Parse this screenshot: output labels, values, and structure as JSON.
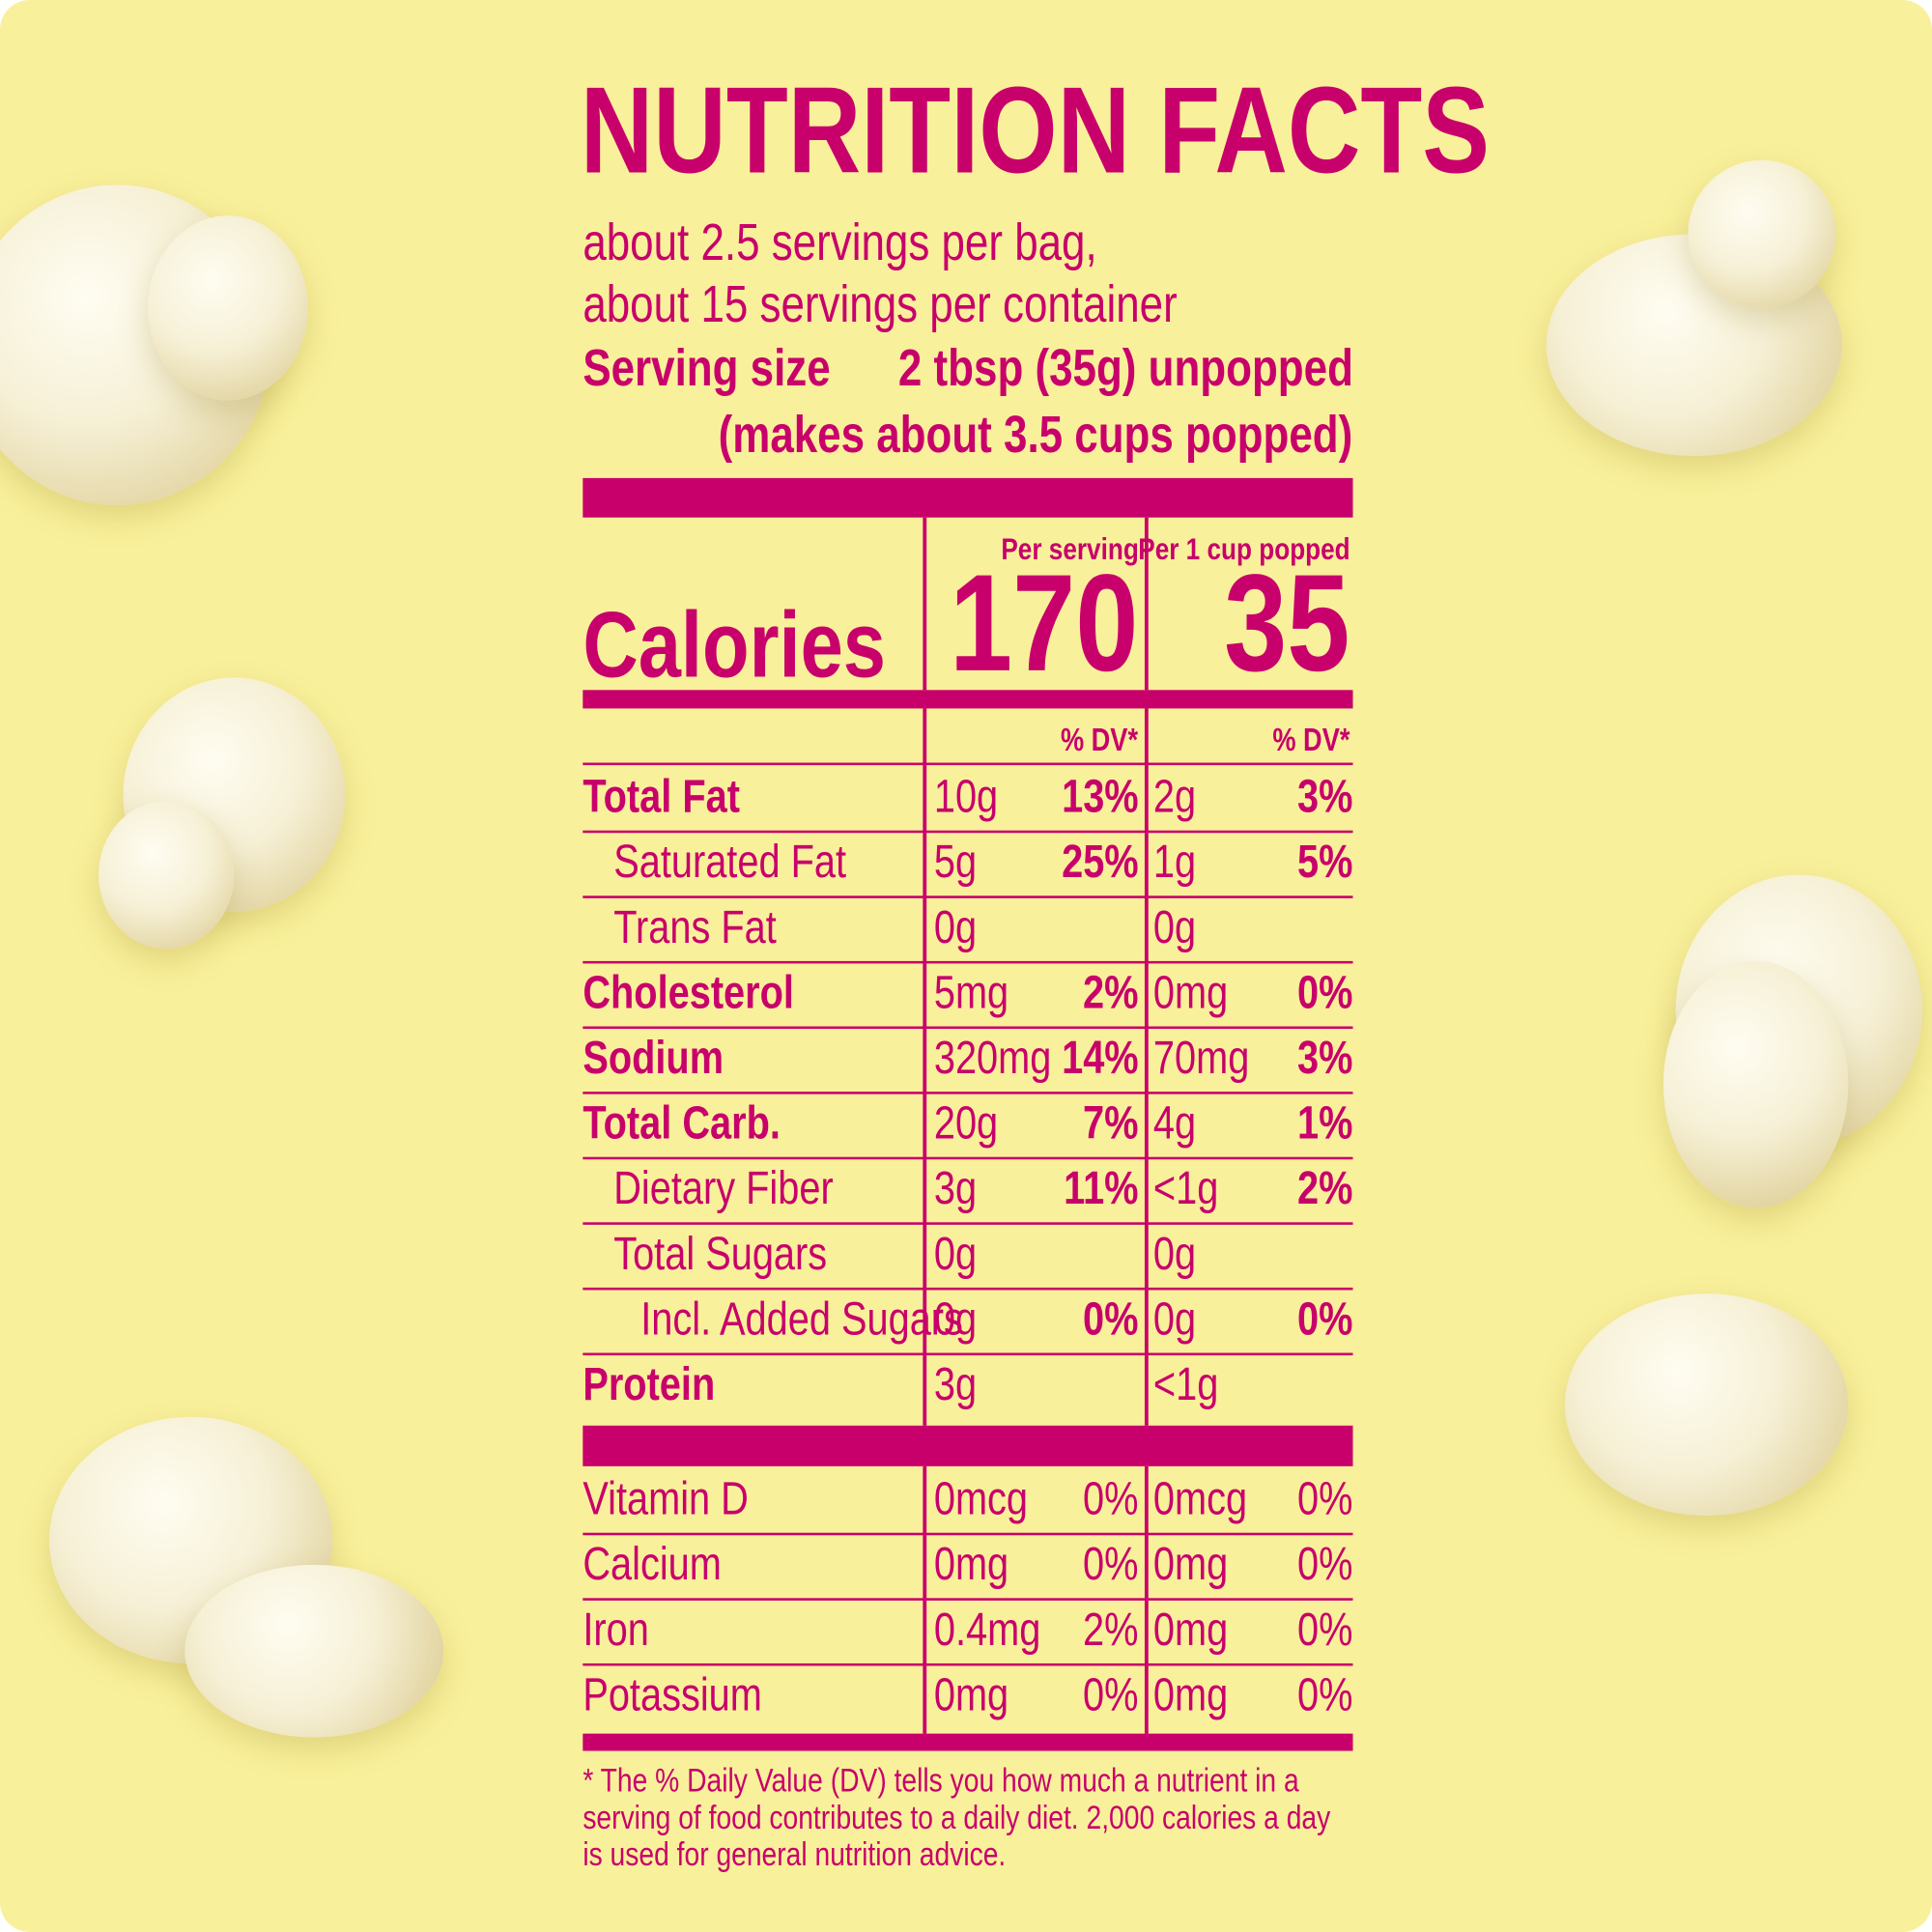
{
  "title": "NUTRITION FACTS",
  "servings": [
    "about 2.5 servings per bag,",
    "about 15 servings per container"
  ],
  "serving_size": {
    "label": "Serving size",
    "value": "2 tbsp (35g) unpopped",
    "note": "(makes about 3.5 cups popped)"
  },
  "columns": [
    "Per serving",
    "Per 1 cup popped"
  ],
  "calories": {
    "label": "Calories",
    "values": [
      "170",
      "35"
    ]
  },
  "dv_header": [
    "% DV*",
    "% DV*"
  ],
  "nutrients": [
    {
      "name": "Total Fat",
      "per_serving": [
        "10g",
        "13%"
      ],
      "per_cup": [
        "2g",
        "3%"
      ]
    },
    {
      "name": "Saturated Fat",
      "per_serving": [
        "5g",
        "25%"
      ],
      "per_cup": [
        "1g",
        "5%"
      ]
    },
    {
      "name": "Trans Fat",
      "per_serving": [
        "0g"
      ],
      "per_cup": [
        "0g"
      ]
    },
    {
      "name": "Cholesterol",
      "per_serving": [
        "5mg",
        "2%"
      ],
      "per_cup": [
        "0mg",
        "0%"
      ]
    },
    {
      "name": "Sodium",
      "per_serving": [
        "320mg",
        "14%"
      ],
      "per_cup": [
        "70mg",
        "3%"
      ]
    },
    {
      "name": "Total Carb.",
      "per_serving": [
        "20g",
        "7%"
      ],
      "per_cup": [
        "4g",
        "1%"
      ]
    },
    {
      "name": "Dietary Fiber",
      "per_serving": [
        "3g",
        "11%"
      ],
      "per_cup": [
        "<1g",
        "2%"
      ]
    },
    {
      "name": "Total Sugars",
      "per_serving": [
        "0g"
      ],
      "per_cup": [
        "0g"
      ]
    },
    {
      "name": "Incl. Added Sugars",
      "per_serving": [
        "0g",
        "0%"
      ],
      "per_cup": [
        "0g",
        "0%"
      ]
    },
    {
      "name": "Protein",
      "per_serving": [
        "3g"
      ],
      "per_cup": [
        "<1g"
      ]
    }
  ],
  "vitamins": [
    {
      "name": "Vitamin D",
      "per_serving": [
        "0mcg",
        "0%"
      ],
      "per_cup": [
        "0mcg",
        "0%"
      ]
    },
    {
      "name": "Calcium",
      "per_serving": [
        "0mg",
        "0%"
      ],
      "per_cup": [
        "0mg",
        "0%"
      ]
    },
    {
      "name": "Iron",
      "per_serving": [
        "0.4mg",
        "2%"
      ],
      "per_cup": [
        "0mg",
        "0%"
      ]
    },
    {
      "name": "Potassium",
      "per_serving": [
        "0mg",
        "0%"
      ],
      "per_cup": [
        "0mg",
        "0%"
      ]
    }
  ],
  "footnote": "* The % Daily Value (DV) tells you how much a nutrient in a serving of food contributes to a daily diet. 2,000 calories a day is used for general nutrition advice."
}
